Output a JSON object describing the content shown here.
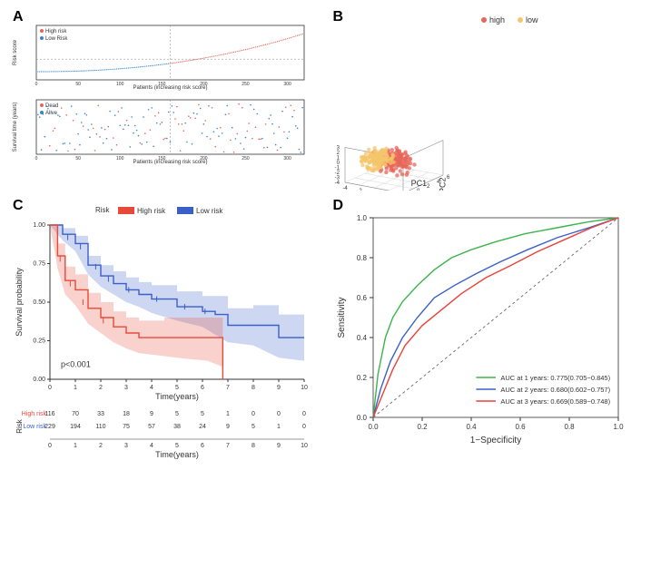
{
  "panels": {
    "A": "A",
    "B": "B",
    "C": "C",
    "D": "D"
  },
  "colors": {
    "high_red": "#e8655a",
    "low_blue": "#3a86c8",
    "low_orange": "#f4c56b",
    "km_red": "#e84a3a",
    "km_blue": "#3a5fc8",
    "km_red_fill": "rgba(232,74,58,0.25)",
    "km_blue_fill": "rgba(58,95,200,0.25)",
    "roc_green": "#3bb54a",
    "roc_blue": "#3a5fc8",
    "roc_red": "#e8423a",
    "axis": "#333333",
    "grid": "#cccccc",
    "text": "#333333"
  },
  "panelA": {
    "top": {
      "legend": [
        "High risk",
        "Low Risk"
      ],
      "ylabel": "Risk score",
      "xlabel": "Patients (increasing risk score)",
      "xmax": 320
    },
    "bottom": {
      "legend": [
        "Dead",
        "Alive"
      ],
      "ylabel": "Survival time (years)",
      "xlabel": "Patients (increasing risk score)"
    }
  },
  "panelB": {
    "legend": {
      "high": "high",
      "low": "low"
    },
    "xlabel": "PC1",
    "ylabel": "PC3",
    "zlabel": "PC2",
    "x_ticks": [
      -4,
      -2,
      0,
      2,
      4
    ],
    "y_ticks": [
      -4,
      -3,
      -2,
      -1,
      0,
      1,
      2,
      3
    ],
    "z_ticks": [
      -2,
      0,
      2,
      4,
      6
    ]
  },
  "panelC": {
    "risk_label": "Risk",
    "legend": {
      "high": "High risk",
      "low": "Low risk"
    },
    "xlabel": "Time(years)",
    "ylabel": "Survival probability",
    "pvalue": "p<0.001",
    "x_ticks": [
      0,
      1,
      2,
      3,
      4,
      5,
      6,
      7,
      8,
      9,
      10
    ],
    "y_ticks": [
      "0.00",
      "0.25",
      "0.50",
      "0.75",
      "1.00"
    ],
    "table_header": "Risk",
    "table_rows": [
      {
        "label": "High risk",
        "vals": [
          116,
          70,
          33,
          18,
          9,
          5,
          5,
          1,
          0,
          0,
          0
        ],
        "color": "#e84a3a"
      },
      {
        "label": "Low risk",
        "vals": [
          229,
          194,
          110,
          75,
          57,
          38,
          24,
          9,
          5,
          1,
          0
        ],
        "color": "#3a5fc8"
      }
    ],
    "km": {
      "high": [
        [
          0,
          1.0
        ],
        [
          0.3,
          0.8
        ],
        [
          0.6,
          0.64
        ],
        [
          1,
          0.58
        ],
        [
          1.5,
          0.46
        ],
        [
          2,
          0.4
        ],
        [
          2.5,
          0.34
        ],
        [
          3,
          0.3
        ],
        [
          3.5,
          0.27
        ],
        [
          4.5,
          0.27
        ],
        [
          5,
          0.27
        ],
        [
          6.2,
          0.27
        ],
        [
          6.8,
          0.18
        ],
        [
          6.8,
          0.0
        ]
      ],
      "high_lower": [
        [
          0,
          1.0
        ],
        [
          0.3,
          0.72
        ],
        [
          0.6,
          0.55
        ],
        [
          1,
          0.48
        ],
        [
          1.5,
          0.36
        ],
        [
          2,
          0.3
        ],
        [
          2.5,
          0.24
        ],
        [
          3,
          0.2
        ],
        [
          3.5,
          0.17
        ],
        [
          4.5,
          0.15
        ],
        [
          5,
          0.14
        ],
        [
          6.2,
          0.12
        ],
        [
          6.8,
          0.08
        ]
      ],
      "high_upper": [
        [
          0,
          1.0
        ],
        [
          0.3,
          0.88
        ],
        [
          0.6,
          0.73
        ],
        [
          1,
          0.68
        ],
        [
          1.5,
          0.56
        ],
        [
          2,
          0.5
        ],
        [
          2.5,
          0.44
        ],
        [
          3,
          0.4
        ],
        [
          3.5,
          0.38
        ],
        [
          4.5,
          0.4
        ],
        [
          5,
          0.4
        ],
        [
          6.2,
          0.4
        ],
        [
          6.8,
          0.28
        ]
      ],
      "low": [
        [
          0,
          1.0
        ],
        [
          0.5,
          0.94
        ],
        [
          1,
          0.88
        ],
        [
          1.5,
          0.74
        ],
        [
          2,
          0.67
        ],
        [
          2.5,
          0.62
        ],
        [
          3,
          0.58
        ],
        [
          3.5,
          0.55
        ],
        [
          4,
          0.52
        ],
        [
          5,
          0.47
        ],
        [
          6,
          0.44
        ],
        [
          6.5,
          0.42
        ],
        [
          7,
          0.35
        ],
        [
          8,
          0.35
        ],
        [
          9,
          0.27
        ],
        [
          10,
          0.27
        ]
      ],
      "low_lower": [
        [
          0,
          1.0
        ],
        [
          0.5,
          0.9
        ],
        [
          1,
          0.83
        ],
        [
          1.5,
          0.68
        ],
        [
          2,
          0.6
        ],
        [
          2.5,
          0.55
        ],
        [
          3,
          0.5
        ],
        [
          3.5,
          0.47
        ],
        [
          4,
          0.43
        ],
        [
          5,
          0.38
        ],
        [
          6,
          0.34
        ],
        [
          7,
          0.24
        ],
        [
          8,
          0.22
        ],
        [
          9,
          0.14
        ],
        [
          10,
          0.12
        ]
      ],
      "low_upper": [
        [
          0,
          1.0
        ],
        [
          0.5,
          0.98
        ],
        [
          1,
          0.93
        ],
        [
          1.5,
          0.8
        ],
        [
          2,
          0.74
        ],
        [
          2.5,
          0.7
        ],
        [
          3,
          0.66
        ],
        [
          3.5,
          0.63
        ],
        [
          4,
          0.61
        ],
        [
          5,
          0.57
        ],
        [
          6,
          0.54
        ],
        [
          7,
          0.46
        ],
        [
          8,
          0.48
        ],
        [
          9,
          0.42
        ],
        [
          10,
          0.42
        ]
      ]
    }
  },
  "panelD": {
    "xlabel": "1−Specificity",
    "ylabel": "Sensitivity",
    "ticks": [
      "0.0",
      "0.2",
      "0.4",
      "0.6",
      "0.8",
      "1.0"
    ],
    "legend": [
      {
        "text": "AUC at 1 years:  0.775(0.705−0.845)",
        "color": "#3bb54a"
      },
      {
        "text": "AUC at 2 years:  0.680(0.602−0.757)",
        "color": "#3a5fc8"
      },
      {
        "text": "AUC at 3 years:  0.669(0.589−0.748)",
        "color": "#e8423a"
      }
    ],
    "curves": {
      "green": [
        [
          0,
          0
        ],
        [
          0.02,
          0.22
        ],
        [
          0.05,
          0.4
        ],
        [
          0.08,
          0.5
        ],
        [
          0.12,
          0.58
        ],
        [
          0.18,
          0.66
        ],
        [
          0.25,
          0.74
        ],
        [
          0.32,
          0.8
        ],
        [
          0.4,
          0.84
        ],
        [
          0.5,
          0.88
        ],
        [
          0.62,
          0.92
        ],
        [
          0.75,
          0.95
        ],
        [
          0.88,
          0.98
        ],
        [
          1,
          1
        ]
      ],
      "blue": [
        [
          0,
          0
        ],
        [
          0.03,
          0.14
        ],
        [
          0.07,
          0.28
        ],
        [
          0.12,
          0.4
        ],
        [
          0.18,
          0.5
        ],
        [
          0.25,
          0.6
        ],
        [
          0.33,
          0.66
        ],
        [
          0.42,
          0.72
        ],
        [
          0.52,
          0.78
        ],
        [
          0.63,
          0.84
        ],
        [
          0.75,
          0.9
        ],
        [
          0.88,
          0.95
        ],
        [
          1,
          1
        ]
      ],
      "red": [
        [
          0,
          0
        ],
        [
          0.04,
          0.12
        ],
        [
          0.08,
          0.24
        ],
        [
          0.13,
          0.36
        ],
        [
          0.2,
          0.46
        ],
        [
          0.28,
          0.54
        ],
        [
          0.36,
          0.62
        ],
        [
          0.46,
          0.7
        ],
        [
          0.56,
          0.76
        ],
        [
          0.67,
          0.83
        ],
        [
          0.78,
          0.89
        ],
        [
          0.89,
          0.95
        ],
        [
          1,
          1
        ]
      ]
    }
  }
}
